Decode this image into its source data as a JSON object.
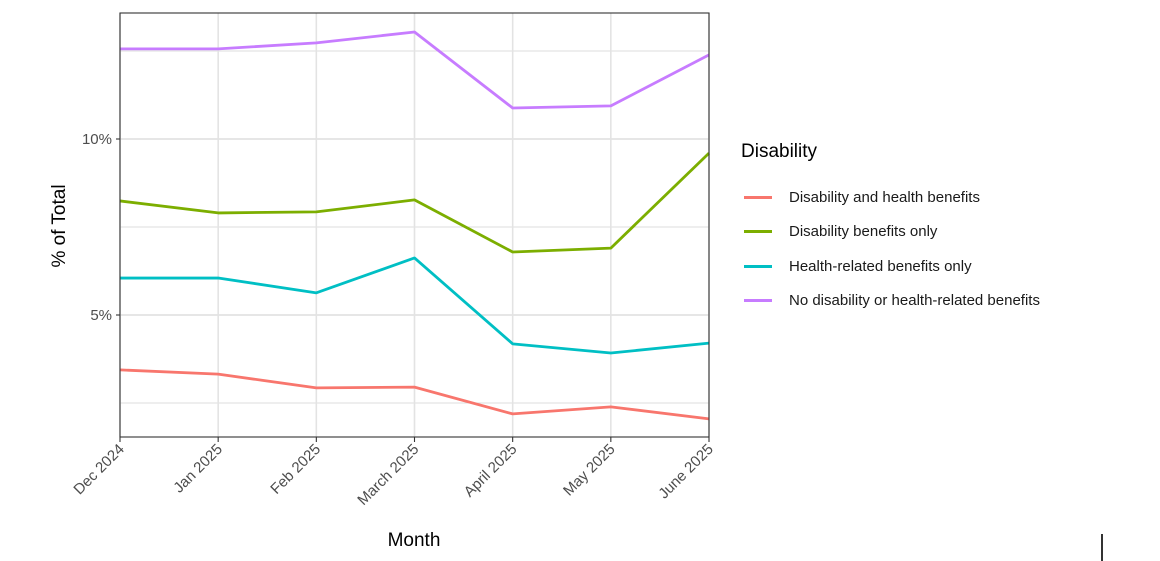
{
  "chart_data": {
    "type": "line",
    "title": "",
    "xlabel": "Month",
    "ylabel": "% of Total",
    "categories": [
      "Dec 2024",
      "Jan 2025",
      "Feb 2025",
      "March 2025",
      "April 2025",
      "May 2025",
      "June 2025"
    ],
    "ylim": [
      1.6,
      13.5
    ],
    "y_ticks": [
      5,
      10
    ],
    "y_tick_labels": [
      "5%",
      "10%"
    ],
    "y_minor_gridlines": [
      2.5,
      7.5,
      12.5
    ],
    "grid": true,
    "legend": {
      "title": "Disability",
      "position": "right"
    },
    "series": [
      {
        "name": "Disability and health benefits",
        "color": "#F8766D",
        "values": [
          3.44,
          3.32,
          2.93,
          2.95,
          2.19,
          2.39,
          2.05
        ]
      },
      {
        "name": "Disability benefits only",
        "color": "#7CAE00",
        "values": [
          8.24,
          7.9,
          7.93,
          8.27,
          6.79,
          6.9,
          9.6
        ]
      },
      {
        "name": "Health-related benefits only",
        "color": "#00BFC4",
        "values": [
          6.05,
          6.05,
          5.63,
          6.62,
          4.18,
          3.92,
          4.2
        ]
      },
      {
        "name": "No disability or health-related benefits",
        "color": "#C77CFF",
        "values": [
          12.56,
          12.56,
          12.73,
          13.04,
          10.88,
          10.94,
          12.39
        ]
      }
    ]
  }
}
